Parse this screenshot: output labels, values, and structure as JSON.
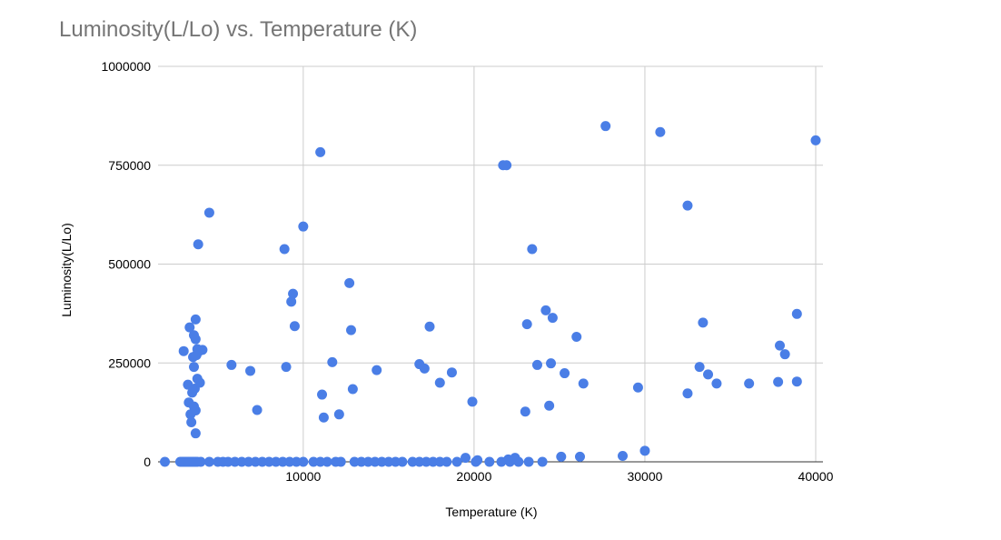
{
  "chart_data": {
    "type": "scatter",
    "title": "Luminosity(L/Lo) vs. Temperature (K)",
    "xlabel": "Temperature (K)",
    "ylabel": "Luminosity(L/Lo)",
    "xlim": [
      1500,
      40000
    ],
    "ylim": [
      0,
      1000000
    ],
    "x_ticks": [
      10000,
      20000,
      30000,
      40000
    ],
    "x_tick_labels": [
      "10000",
      "20000",
      "30000",
      "40000"
    ],
    "y_ticks": [
      0,
      250000,
      500000,
      750000,
      1000000
    ],
    "y_tick_labels": [
      "0",
      "250000",
      "500000",
      "750000",
      "1000000"
    ],
    "grid": true,
    "legend": "none",
    "colors": {
      "series": "#4a7ee6",
      "grid": "#cccccc",
      "title": "#757575"
    },
    "series": [
      {
        "points": [
          [
            1900,
            0
          ],
          [
            2800,
            0
          ],
          [
            2900,
            0
          ],
          [
            3000,
            0
          ],
          [
            3100,
            0
          ],
          [
            3200,
            0
          ],
          [
            3300,
            0
          ],
          [
            3400,
            0
          ],
          [
            3500,
            0
          ],
          [
            3600,
            0
          ],
          [
            3700,
            0
          ],
          [
            3800,
            0
          ],
          [
            4000,
            0
          ],
          [
            4500,
            0
          ],
          [
            5000,
            0
          ],
          [
            5300,
            0
          ],
          [
            5600,
            0
          ],
          [
            6000,
            0
          ],
          [
            6400,
            0
          ],
          [
            6800,
            0
          ],
          [
            7200,
            0
          ],
          [
            7600,
            0
          ],
          [
            8000,
            0
          ],
          [
            8400,
            0
          ],
          [
            8800,
            0
          ],
          [
            9200,
            0
          ],
          [
            9600,
            0
          ],
          [
            10000,
            0
          ],
          [
            10600,
            0
          ],
          [
            11000,
            0
          ],
          [
            11400,
            0
          ],
          [
            11900,
            0
          ],
          [
            12200,
            0
          ],
          [
            13000,
            0
          ],
          [
            13400,
            0
          ],
          [
            13800,
            0
          ],
          [
            14200,
            0
          ],
          [
            14600,
            0
          ],
          [
            15000,
            0
          ],
          [
            15400,
            0
          ],
          [
            15800,
            0
          ],
          [
            16400,
            0
          ],
          [
            16800,
            0
          ],
          [
            17200,
            0
          ],
          [
            17600,
            0
          ],
          [
            18000,
            0
          ],
          [
            18400,
            0
          ],
          [
            19000,
            0
          ],
          [
            20100,
            0
          ],
          [
            20900,
            0
          ],
          [
            21600,
            0
          ],
          [
            22100,
            0
          ],
          [
            22600,
            0
          ],
          [
            23200,
            0
          ],
          [
            24000,
            0
          ],
          [
            19500,
            10000
          ],
          [
            20200,
            4000
          ],
          [
            22000,
            6000
          ],
          [
            22400,
            10000
          ],
          [
            25100,
            13000
          ],
          [
            26200,
            13000
          ],
          [
            28700,
            15000
          ],
          [
            30000,
            28000
          ],
          [
            3000,
            280000
          ],
          [
            3250,
            195000
          ],
          [
            3300,
            150000
          ],
          [
            3350,
            340000
          ],
          [
            3400,
            120000
          ],
          [
            3450,
            100000
          ],
          [
            3500,
            175000
          ],
          [
            3550,
            265000
          ],
          [
            3600,
            320000
          ],
          [
            3600,
            240000
          ],
          [
            3600,
            140000
          ],
          [
            3650,
            185000
          ],
          [
            3700,
            310000
          ],
          [
            3700,
            360000
          ],
          [
            3700,
            130000
          ],
          [
            3700,
            72000
          ],
          [
            3750,
            270000
          ],
          [
            3800,
            285000
          ],
          [
            3800,
            210000
          ],
          [
            3850,
            550000
          ],
          [
            3900,
            280000
          ],
          [
            3950,
            200000
          ],
          [
            4100,
            283000
          ],
          [
            4500,
            630000
          ],
          [
            5800,
            245000
          ],
          [
            6900,
            230000
          ],
          [
            7300,
            131000
          ],
          [
            8900,
            538000
          ],
          [
            9000,
            240000
          ],
          [
            9300,
            405000
          ],
          [
            9400,
            425000
          ],
          [
            9500,
            343000
          ],
          [
            10000,
            595000
          ],
          [
            11000,
            783000
          ],
          [
            11100,
            170000
          ],
          [
            11200,
            112000
          ],
          [
            11700,
            252000
          ],
          [
            12100,
            120000
          ],
          [
            12700,
            452000
          ],
          [
            12800,
            333000
          ],
          [
            12900,
            184000
          ],
          [
            14300,
            232000
          ],
          [
            16800,
            247000
          ],
          [
            17100,
            236000
          ],
          [
            17400,
            342000
          ],
          [
            18000,
            200000
          ],
          [
            18700,
            226000
          ],
          [
            19900,
            152000
          ],
          [
            21700,
            750000
          ],
          [
            21900,
            750000
          ],
          [
            23000,
            127000
          ],
          [
            23100,
            348000
          ],
          [
            23400,
            538000
          ],
          [
            23700,
            245000
          ],
          [
            24200,
            383000
          ],
          [
            24400,
            142000
          ],
          [
            24500,
            249000
          ],
          [
            24600,
            364000
          ],
          [
            25300,
            224000
          ],
          [
            26000,
            316000
          ],
          [
            26400,
            198000
          ],
          [
            27700,
            849000
          ],
          [
            29600,
            188000
          ],
          [
            30900,
            834000
          ],
          [
            32500,
            648000
          ],
          [
            32500,
            173000
          ],
          [
            33200,
            240000
          ],
          [
            33400,
            352000
          ],
          [
            33700,
            221000
          ],
          [
            34200,
            198000
          ],
          [
            36100,
            198000
          ],
          [
            37800,
            202000
          ],
          [
            37900,
            294000
          ],
          [
            38200,
            272000
          ],
          [
            38900,
            374000
          ],
          [
            38900,
            203000
          ],
          [
            40000,
            813000
          ]
        ]
      }
    ]
  }
}
